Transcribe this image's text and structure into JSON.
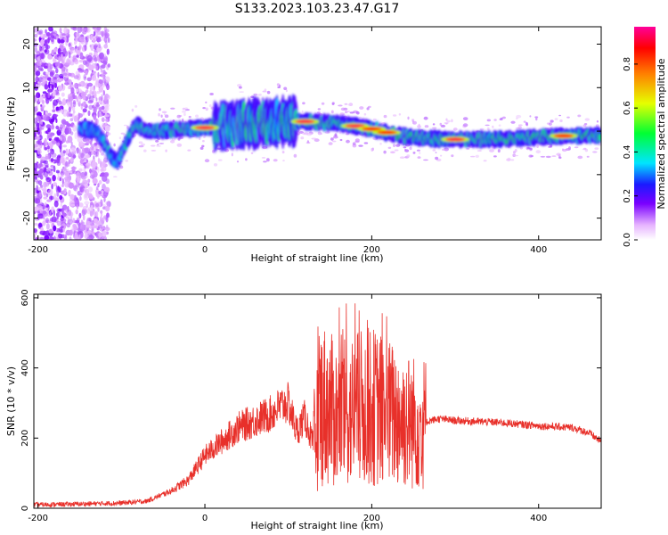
{
  "title": "S133.2023.103.23.47.G17",
  "chart_data": [
    {
      "type": "heatmap",
      "xlabel": "Height of straight line (km)",
      "ylabel": "Frequency (Hz)",
      "colorbar_label": "Normalized spectral amplitude",
      "xlim": [
        -205,
        475
      ],
      "ylim": [
        -25,
        24
      ],
      "x_ticks": [
        -200,
        0,
        200,
        400
      ],
      "y_ticks": [
        -20,
        -10,
        0,
        10,
        20
      ],
      "colorbar_range": [
        0,
        0.97
      ],
      "colorbar_ticks": [
        "0.0",
        "0.2",
        "0.4",
        "0.6",
        "0.8"
      ],
      "colorbar_tick_values": [
        0,
        0.2,
        0.4,
        0.6,
        0.8
      ],
      "ridge": {
        "x": [
          -145,
          -130,
          -120,
          -112,
          -105,
          -100,
          -95,
          -90,
          -85,
          -80,
          -75,
          -70,
          -60,
          -40,
          -20,
          0,
          20,
          40,
          60,
          80,
          100,
          120,
          140,
          160,
          180,
          200,
          220,
          240,
          260,
          280,
          300,
          320,
          340,
          360,
          380,
          400,
          420,
          440,
          460,
          475
        ],
        "y": [
          0.5,
          0,
          -3,
          -6,
          -7,
          -5,
          -3,
          -1,
          1,
          1.5,
          0.5,
          0,
          0,
          0.3,
          0.5,
          0.8,
          1.2,
          1.5,
          1.8,
          2,
          2.3,
          2.2,
          2,
          1.8,
          1.2,
          0.5,
          -0.5,
          -1.2,
          -1.6,
          -1.8,
          -1.9,
          -1.9,
          -1.9,
          -1.8,
          -1.6,
          -1.4,
          -1.2,
          -1.1,
          -1.0,
          -1.0
        ]
      },
      "peaks": [
        {
          "x": 0,
          "y": 0.8,
          "amp": 0.95
        },
        {
          "x": 120,
          "y": 2.2,
          "amp": 0.95
        },
        {
          "x": 180,
          "y": 1.2,
          "amp": 0.95
        },
        {
          "x": 200,
          "y": 0.5,
          "amp": 0.9
        },
        {
          "x": 218,
          "y": -0.3,
          "amp": 0.9
        },
        {
          "x": 300,
          "y": -1.9,
          "amp": 0.95
        },
        {
          "x": 430,
          "y": -1.1,
          "amp": 0.9
        }
      ]
    },
    {
      "type": "line",
      "xlabel": "Height of straight line (km)",
      "ylabel": "SNR (10 * v/v)",
      "xlim": [
        -205,
        475
      ],
      "ylim": [
        0,
        610
      ],
      "x_ticks": [
        -200,
        0,
        200,
        400
      ],
      "y_ticks": [
        0,
        200,
        400,
        600
      ],
      "series_color": "#e8302a",
      "envelope": {
        "x": [
          -205,
          -150,
          -100,
          -70,
          -40,
          -20,
          0,
          20,
          40,
          60,
          80,
          90,
          100,
          110,
          120,
          130,
          140,
          160,
          180,
          200,
          220,
          240,
          260,
          270,
          280,
          300,
          350,
          400,
          440,
          460,
          475
        ],
        "y": [
          10,
          12,
          15,
          20,
          50,
          80,
          150,
          190,
          230,
          250,
          270,
          290,
          300,
          220,
          260,
          180,
          300,
          260,
          280,
          290,
          270,
          250,
          240,
          250,
          255,
          250,
          245,
          235,
          230,
          215,
          190
        ]
      }
    }
  ]
}
